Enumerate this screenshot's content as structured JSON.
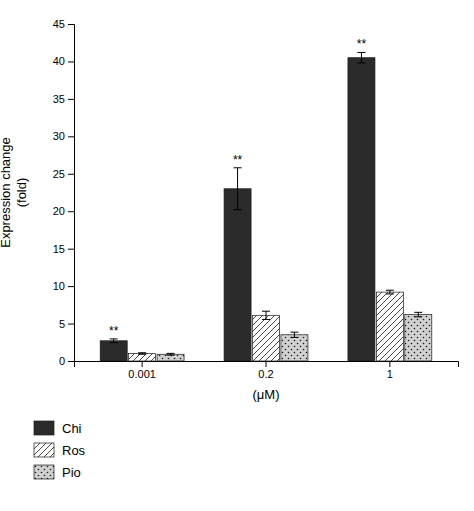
{
  "chart_data": {
    "type": "bar",
    "categories": [
      "0.001",
      "0.2",
      "1"
    ],
    "xlabel": "(μM)",
    "ylabel": "Expression change\n(fold)",
    "ylim": [
      0,
      45
    ],
    "yticks": [
      0,
      5,
      10,
      15,
      20,
      25,
      30,
      35,
      40,
      45
    ],
    "grid": false,
    "legend": "bottom",
    "series": [
      {
        "name": "Chi",
        "color": "#2b2b2b",
        "values": [
          2.7,
          23.0,
          40.5
        ],
        "errors": [
          0.25,
          2.8,
          0.7
        ],
        "annotations": [
          "**",
          "**",
          "**"
        ]
      },
      {
        "name": "Ros",
        "color": "#ffffff",
        "values": [
          1.0,
          6.1,
          9.2
        ],
        "errors": [
          0.1,
          0.55,
          0.25
        ]
      },
      {
        "name": "Pio",
        "color": "#d0d0d0",
        "values": [
          0.9,
          3.5,
          6.2
        ],
        "errors": [
          0.12,
          0.35,
          0.3
        ]
      }
    ]
  }
}
